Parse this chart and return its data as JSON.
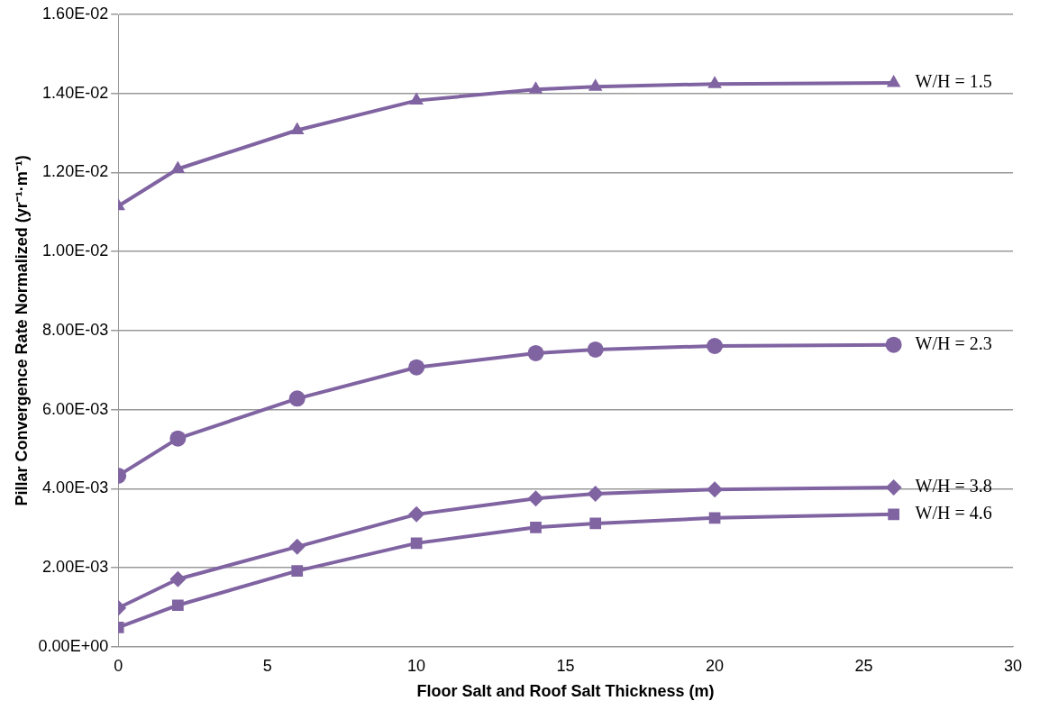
{
  "chart_data": {
    "type": "line",
    "xlabel": "Floor Salt and Roof Salt Thickness (m)",
    "ylabel": "Pillar Convergence Rate Normalized (yr⁻¹·m⁻¹)",
    "x": [
      0,
      2,
      6,
      10,
      14,
      16,
      20,
      26
    ],
    "series": [
      {
        "name": "W/H = 1.5",
        "color": "#8064a2",
        "marker": "triangle",
        "values": [
          0.01115,
          0.01209,
          0.01307,
          0.01382,
          0.0141,
          0.01417,
          0.01424,
          0.01427
        ]
      },
      {
        "name": "W/H = 2.3",
        "color": "#8064a2",
        "marker": "circle",
        "values": [
          0.00433,
          0.00527,
          0.00628,
          0.00707,
          0.00743,
          0.00752,
          0.00761,
          0.00764
        ]
      },
      {
        "name": "W/H = 3.8",
        "color": "#8064a2",
        "marker": "diamond",
        "values": [
          0.00098,
          0.00171,
          0.00253,
          0.00335,
          0.00375,
          0.00387,
          0.00398,
          0.00403
        ]
      },
      {
        "name": "W/H = 4.6",
        "color": "#8064a2",
        "marker": "square",
        "values": [
          0.00049,
          0.00105,
          0.00192,
          0.00262,
          0.00302,
          0.00312,
          0.00326,
          0.00335
        ]
      }
    ],
    "xlim": [
      0,
      30
    ],
    "xticks": [
      0,
      5,
      10,
      15,
      20,
      25,
      30
    ],
    "ylim": [
      0,
      0.016
    ],
    "yticks": [
      {
        "value": 0,
        "label": "0.00E+00"
      },
      {
        "value": 0.002,
        "label": "2.00E-03"
      },
      {
        "value": 0.004,
        "label": "4.00E-03"
      },
      {
        "value": 0.006,
        "label": "6.00E-03"
      },
      {
        "value": 0.008,
        "label": "8.00E-03"
      },
      {
        "value": 0.01,
        "label": "1.00E-02"
      },
      {
        "value": 0.012,
        "label": "1.20E-02"
      },
      {
        "value": 0.014,
        "label": "1.40E-02"
      },
      {
        "value": 0.016,
        "label": "1.60E-02"
      }
    ],
    "grid": "y",
    "legend": false,
    "line_style": "solid"
  }
}
